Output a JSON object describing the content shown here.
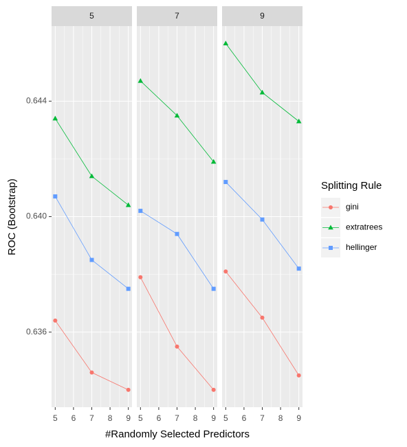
{
  "chart_data": {
    "type": "line",
    "x_label": "#Randomly Selected Predictors",
    "y_label": "ROC (Bootstrap)",
    "legend_title": "Splitting Rule",
    "x": [
      5,
      7,
      9
    ],
    "xlim": [
      4.8,
      9.2
    ],
    "xticks": [
      5,
      6,
      7,
      8,
      9
    ],
    "ylim": [
      0.6334,
      0.6466
    ],
    "yticks": [
      0.636,
      {
        "value": 0.64,
        "label": "0.640"
      },
      0.644
    ],
    "grid": true,
    "series": [
      {
        "name": "gini",
        "color": "#F8766D",
        "shape": "circle"
      },
      {
        "name": "extratrees",
        "color": "#00BA38",
        "shape": "triangle"
      },
      {
        "name": "hellinger",
        "color": "#619CFF",
        "shape": "square"
      }
    ],
    "facets": [
      {
        "title": "5",
        "series": [
          {
            "values": [
              0.6364,
              0.6346,
              0.634
            ]
          },
          {
            "values": [
              0.6434,
              0.6414,
              0.6404
            ]
          },
          {
            "values": [
              0.6407,
              0.6385,
              0.6375
            ]
          }
        ]
      },
      {
        "title": "7",
        "series": [
          {
            "values": [
              0.6379,
              0.6355,
              0.634
            ]
          },
          {
            "values": [
              0.6447,
              0.6435,
              0.6419
            ]
          },
          {
            "values": [
              0.6402,
              0.6394,
              0.6375
            ]
          }
        ]
      },
      {
        "title": "9",
        "series": [
          {
            "values": [
              0.6381,
              0.6365,
              0.6345
            ]
          },
          {
            "values": [
              0.646,
              0.6443,
              0.6433
            ]
          },
          {
            "values": [
              0.6412,
              0.6399,
              0.6382
            ]
          }
        ]
      }
    ]
  }
}
